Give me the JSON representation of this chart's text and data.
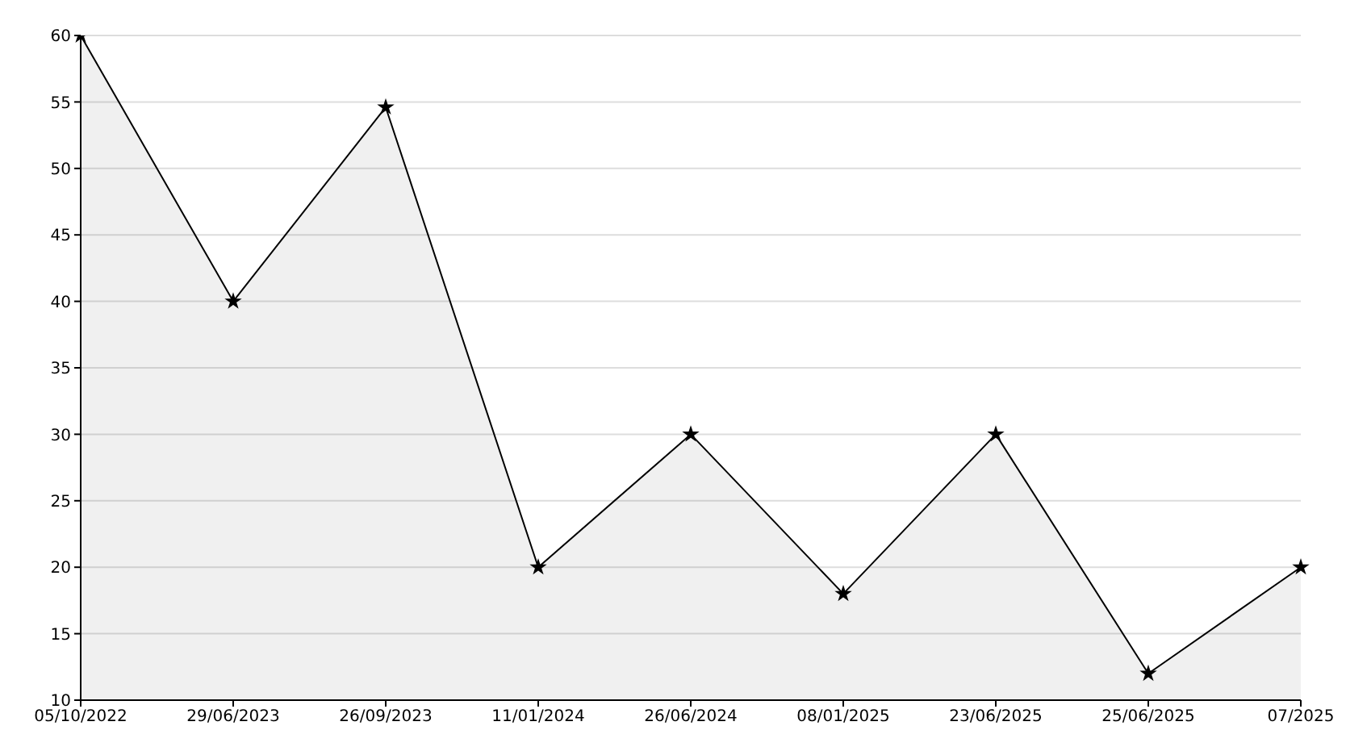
{
  "chart_data": {
    "type": "area",
    "categories": [
      "05/10/2022",
      "29/06/2023",
      "26/09/2023",
      "11/01/2024",
      "26/06/2024",
      "08/01/2025",
      "23/06/2025",
      "25/06/2025",
      "07/2025"
    ],
    "series": [
      {
        "color": "#000000",
        "values": [
          60,
          40,
          54.6,
          20,
          30,
          18,
          30,
          12,
          20
        ]
      }
    ],
    "ylim": [
      10,
      60
    ],
    "yticks": [
      10,
      15,
      20,
      25,
      30,
      35,
      40,
      45,
      50,
      55,
      60
    ],
    "grid": "y",
    "marker": "star",
    "line_style": "solid"
  }
}
